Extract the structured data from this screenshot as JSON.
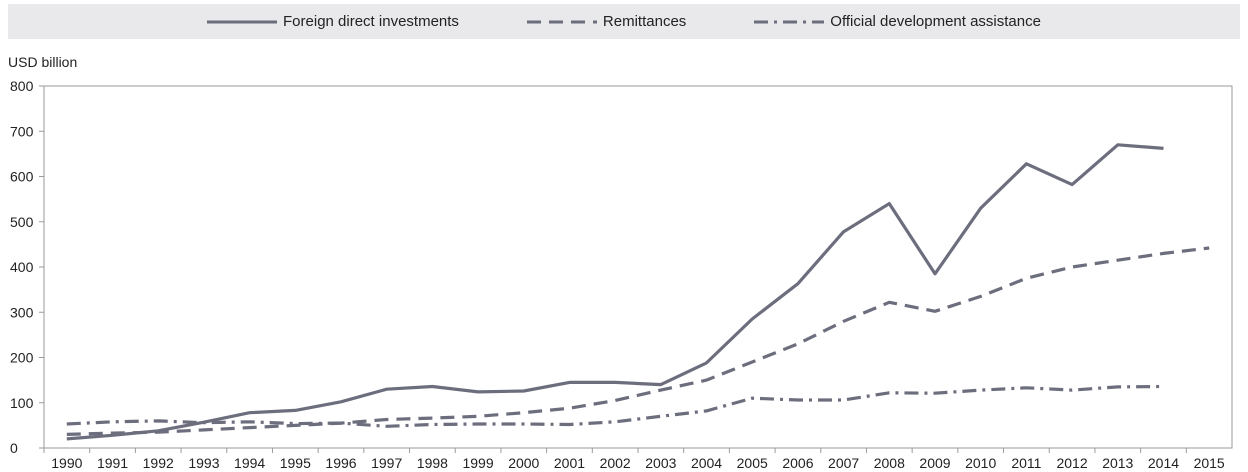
{
  "chart_data": {
    "type": "line",
    "title": "",
    "ylabel": "USD billion",
    "xlabel": "",
    "ylim": [
      0,
      800
    ],
    "yticks": [
      0,
      100,
      200,
      300,
      400,
      500,
      600,
      700,
      800
    ],
    "grid": false,
    "legend_position": "top",
    "x": [
      "1990",
      "1991",
      "1992",
      "1993",
      "1994",
      "1995",
      "1996",
      "1997",
      "1998",
      "1999",
      "2000",
      "2001",
      "2002",
      "2003",
      "2004",
      "2005",
      "2006",
      "2007",
      "2008",
      "2009",
      "2010",
      "2011",
      "2012",
      "2013",
      "2014",
      "2015"
    ],
    "series": [
      {
        "name": "Foreign direct investments",
        "style": "solid",
        "color": "#6c6e7e",
        "values": [
          20,
          28,
          38,
          57,
          78,
          83,
          102,
          130,
          136,
          124,
          126,
          145,
          145,
          140,
          188,
          285,
          363,
          478,
          540,
          385,
          530,
          628,
          582,
          670,
          662,
          null
        ]
      },
      {
        "name": "Remittances",
        "style": "dashed",
        "color": "#6c6e7e",
        "values": [
          30,
          33,
          35,
          40,
          45,
          50,
          55,
          63,
          66,
          70,
          78,
          88,
          105,
          128,
          150,
          190,
          230,
          280,
          322,
          302,
          335,
          375,
          400,
          415,
          430,
          442
        ]
      },
      {
        "name": "Official development assistance",
        "style": "dashdot",
        "color": "#6c6e7e",
        "values": [
          53,
          58,
          60,
          56,
          58,
          54,
          55,
          48,
          52,
          53,
          53,
          52,
          58,
          70,
          82,
          110,
          106,
          106,
          122,
          121,
          128,
          133,
          128,
          135,
          136,
          null
        ]
      }
    ]
  }
}
